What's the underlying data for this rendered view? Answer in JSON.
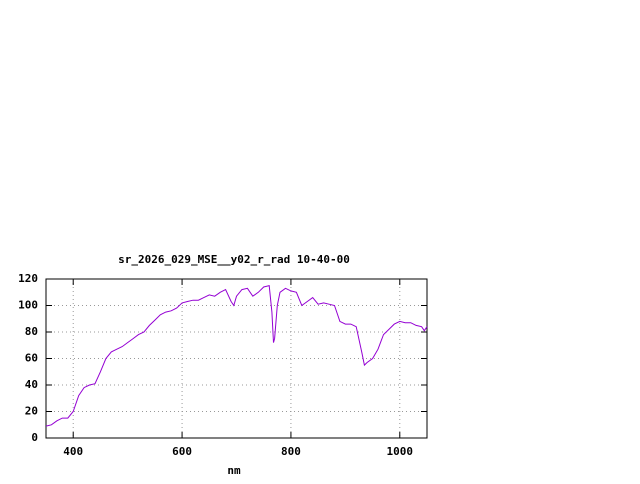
{
  "chart_data": {
    "type": "line",
    "title": "sr_2026_029_MSE__y02_r_rad 10-40-00",
    "x_label": "nm",
    "x": [
      350,
      360,
      370,
      380,
      390,
      400,
      410,
      420,
      430,
      440,
      450,
      460,
      470,
      480,
      490,
      500,
      510,
      520,
      530,
      540,
      550,
      560,
      570,
      580,
      590,
      600,
      610,
      620,
      630,
      640,
      650,
      660,
      670,
      680,
      690,
      695,
      700,
      710,
      720,
      730,
      740,
      750,
      760,
      765,
      768,
      770,
      775,
      780,
      790,
      800,
      810,
      820,
      830,
      840,
      850,
      860,
      870,
      880,
      890,
      900,
      910,
      920,
      930,
      935,
      940,
      950,
      960,
      970,
      980,
      990,
      1000,
      1010,
      1020,
      1030,
      1040,
      1045,
      1050
    ],
    "series": [
      {
        "name": "sr_2026_029_MSE__y02_r_rad 10-40-00",
        "color": "#9400d3",
        "values": [
          9,
          10,
          13,
          15,
          15,
          20,
          32,
          38,
          40,
          41,
          50,
          60,
          65,
          67,
          69,
          72,
          75,
          78,
          80,
          85,
          89,
          93,
          95,
          96,
          98,
          102,
          103,
          104,
          104,
          106,
          108,
          107,
          110,
          112,
          103,
          100,
          107,
          112,
          113,
          107,
          110,
          114,
          115,
          95,
          72,
          75,
          100,
          110,
          113,
          111,
          110,
          100,
          103,
          106,
          101,
          102,
          101,
          100,
          88,
          86,
          86,
          84,
          65,
          55,
          57,
          60,
          67,
          78,
          82,
          86,
          88,
          87,
          87,
          85,
          84,
          81,
          84
        ]
      }
    ],
    "xlim": [
      350,
      1050
    ],
    "xticks": [
      400,
      600,
      800,
      1000
    ],
    "ylim": [
      0,
      120
    ],
    "yticks": [
      0,
      20,
      40,
      60,
      80,
      100,
      120
    ],
    "grid": true
  }
}
